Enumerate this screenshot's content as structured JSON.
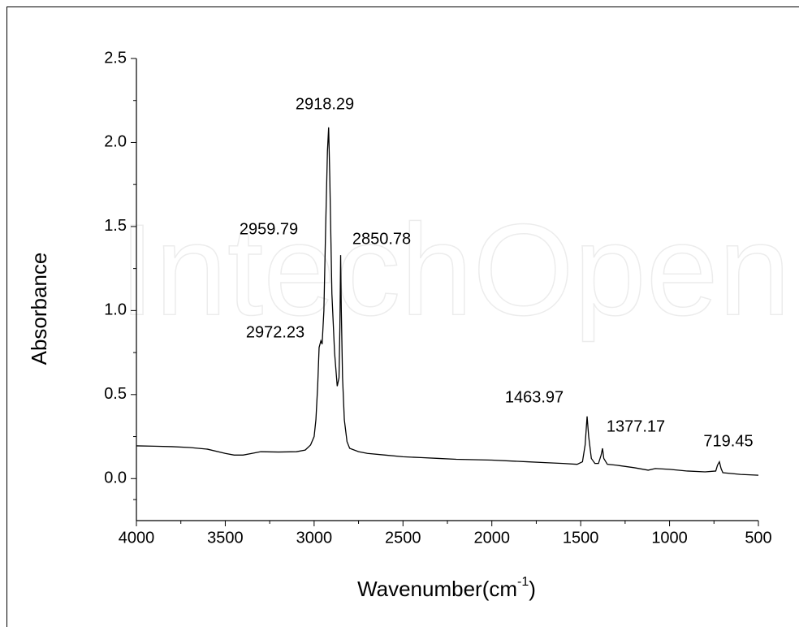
{
  "chart_data": {
    "type": "line",
    "watermark": "IntechOpen",
    "xlabel": [
      "Wavenumber(cm",
      "-1",
      ")"
    ],
    "ylabel": "Absorbance",
    "x": [
      4000,
      3900,
      3800,
      3700,
      3600,
      3500,
      3450,
      3400,
      3350,
      3300,
      3200,
      3100,
      3050,
      3020,
      3000,
      2990,
      2980,
      2972,
      2962,
      2955,
      2945,
      2935,
      2925,
      2918.29,
      2912,
      2900,
      2885,
      2870,
      2860,
      2855,
      2850.78,
      2847,
      2840,
      2830,
      2815,
      2800,
      2750,
      2700,
      2600,
      2500,
      2400,
      2300,
      2200,
      2000,
      1800,
      1700,
      1600,
      1520,
      1490,
      1475,
      1463.97,
      1455,
      1440,
      1420,
      1400,
      1385,
      1377.17,
      1370,
      1350,
      1300,
      1200,
      1120,
      1080,
      1000,
      900,
      800,
      740,
      730,
      719.45,
      710,
      700,
      600,
      500
    ],
    "series": [
      {
        "color": "#000000",
        "values": [
          0.195,
          0.193,
          0.19,
          0.185,
          0.175,
          0.15,
          0.14,
          0.14,
          0.15,
          0.16,
          0.158,
          0.16,
          0.17,
          0.2,
          0.25,
          0.35,
          0.55,
          0.78,
          0.82,
          0.8,
          1.0,
          1.5,
          1.95,
          2.09,
          1.8,
          1.1,
          0.75,
          0.55,
          0.6,
          0.9,
          1.33,
          1.0,
          0.6,
          0.35,
          0.22,
          0.18,
          0.16,
          0.15,
          0.14,
          0.13,
          0.125,
          0.12,
          0.115,
          0.11,
          0.1,
          0.095,
          0.09,
          0.085,
          0.1,
          0.2,
          0.37,
          0.25,
          0.12,
          0.09,
          0.09,
          0.14,
          0.18,
          0.12,
          0.085,
          0.08,
          0.065,
          0.05,
          0.06,
          0.055,
          0.045,
          0.04,
          0.045,
          0.08,
          0.1,
          0.06,
          0.035,
          0.025,
          0.02
        ]
      }
    ],
    "annotations": [
      "2918.29",
      "2959.79",
      "2850.78",
      "2972.23",
      "1463.97",
      "1377.17",
      "719.45"
    ],
    "xlim": [
      4000,
      500
    ],
    "xticks": [
      4000,
      3500,
      3000,
      2500,
      2000,
      1500,
      1000,
      500
    ],
    "ylim": [
      -0.25,
      2.5
    ],
    "yticks": [
      {
        "value": 0,
        "label": "0.0"
      },
      0.5,
      {
        "value": 1,
        "label": "1.0"
      },
      1.5,
      {
        "value": 2,
        "label": "2.0"
      },
      2.5
    ]
  }
}
